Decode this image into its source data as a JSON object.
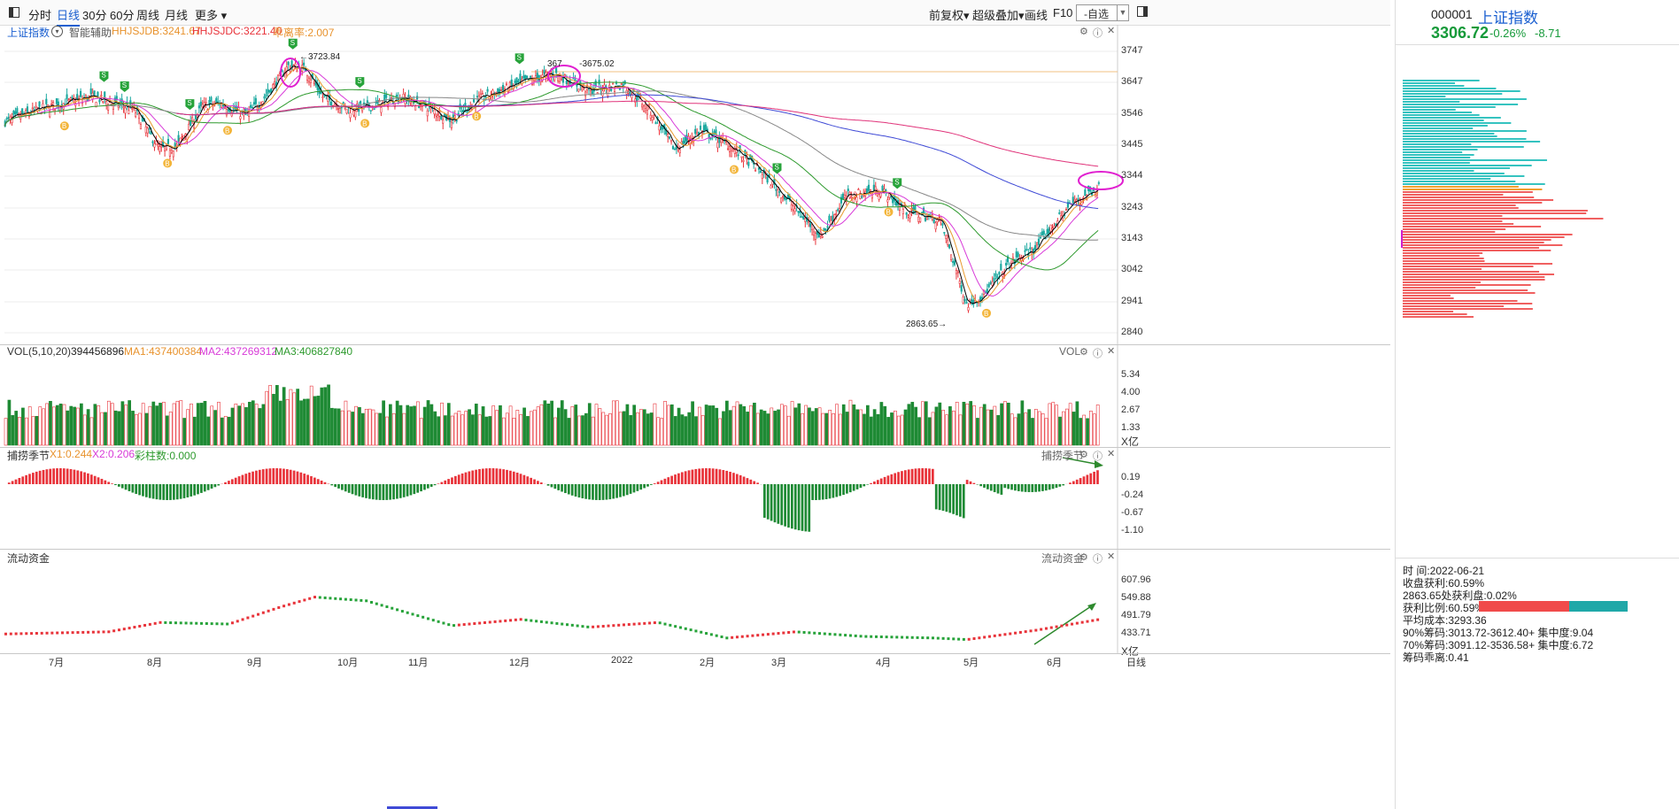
{
  "toolbar": {
    "tabs": [
      "分时",
      "日线",
      "30分",
      "60分",
      "周线",
      "月线"
    ],
    "more": "更多",
    "right": [
      "前复权",
      "超级叠加",
      "画线",
      "F10"
    ],
    "select_value": "-自选"
  },
  "kline": {
    "index_name": "上证指数",
    "assist": "智能辅助",
    "hhjsjdb": "HHJSJDB:3241.67",
    "hhjsjdc": "HHJSJDC:3221.40",
    "deviation": "乖离率:2.007",
    "yticks": [
      "3747",
      "3647",
      "3546",
      "3445",
      "3344",
      "3243",
      "3143",
      "3042",
      "2941",
      "2840"
    ],
    "high1": "3723.84",
    "high2": "3675.02",
    "high2_prefix": "367",
    "low": "2863.65",
    "colors": {
      "up": "#e8333a",
      "down": "#1aa89f",
      "ma5": "#000000",
      "ma10": "#e89a2c",
      "ma20": "#d83ad8",
      "ma60": "#2e9a2e",
      "ma120": "#888888",
      "ma250": "#3f4ad6",
      "ma_long": "#e0337a"
    }
  },
  "vol": {
    "title": "VOL(5,10,20)",
    "value": "394456896",
    "ma1": "MA1:437400384",
    "ma2": "MA2:437269312",
    "ma3": "MA3:406827840",
    "tag": "VOL",
    "yticks": [
      "5.34",
      "4.00",
      "2.67",
      "1.33"
    ],
    "unit": "X亿"
  },
  "catch": {
    "title": "捕捞季节",
    "x1": "X1:0.244",
    "x2": "X2:0.206",
    "bars": "彩柱数:0.000",
    "tag": "捕捞季节",
    "yticks": [
      "0.19",
      "-0.24",
      "-0.67",
      "-1.10"
    ]
  },
  "flow": {
    "title": "流动资金",
    "tag": "流动资金",
    "yticks": [
      "607.96",
      "549.88",
      "491.79",
      "433.71"
    ],
    "unit": "X亿"
  },
  "xaxis": {
    "labels": [
      "7月",
      "8月",
      "9月",
      "10月",
      "11月",
      "12月",
      "2022",
      "2月",
      "3月",
      "4月",
      "5月",
      "6月"
    ],
    "period": "日线"
  },
  "quote": {
    "code": "000001",
    "name": "上证指数",
    "price": "3306.72",
    "pct": "-0.26%",
    "change": "-8.71"
  },
  "stats": {
    "time": "时      间:2022-06-21",
    "profit": "收盘获利:60.59%",
    "profit_at": "2863.65处获利盘:0.02%",
    "ratio": "获利比例:60.59%",
    "avg_cost": "平均成本:3293.36",
    "c90": "90%筹码:3013.72-3612.40+  集中度:9.04",
    "c70": "70%筹码:3091.12-3536.58+  集中度:6.72",
    "dev": "筹码乖离:0.41"
  }
}
